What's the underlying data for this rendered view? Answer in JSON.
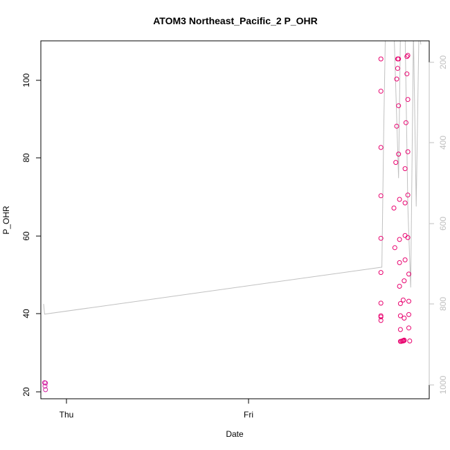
{
  "chart_data": {
    "type": "scatter",
    "title": "ATOM3 Northeast_Pacific_2 P_OHR",
    "xlabel": "Date",
    "ylabel": "P_OHR",
    "x_ticks": [
      "Thu",
      "Fri"
    ],
    "y_ticks": [
      "20",
      "40",
      "60",
      "80",
      "100"
    ],
    "y2_ticks": [
      "200",
      "400",
      "600",
      "800",
      "1000"
    ],
    "ylim": [
      19,
      110
    ],
    "y2lim": [
      1035,
      151
    ],
    "x_units": "hours since the Thu tick",
    "xlim": [
      -1.6,
      40.2
    ],
    "colors": {
      "points": "#e8006e",
      "early_points": "#d020a0",
      "line": "#c0c0c0",
      "right_axis": "#bfbfbf"
    },
    "pressure_line": {
      "name": "pressure",
      "points": [
        [
          -1.3,
          801
        ],
        [
          -1.2,
          826
        ],
        [
          35.1,
          710
        ],
        [
          35.3,
          380
        ],
        [
          35.5,
          110
        ],
        [
          36.4,
          120
        ],
        [
          36.9,
          490
        ],
        [
          37.1,
          130
        ],
        [
          37.3,
          140
        ],
        [
          37.6,
          125
        ],
        [
          37.9,
          560
        ],
        [
          38.2,
          760
        ],
        [
          38.5,
          130
        ],
        [
          38.8,
          560
        ],
        [
          39.1,
          120
        ],
        [
          39.3,
          160
        ]
      ]
    },
    "series": [
      {
        "name": "early",
        "points": [
          [
            -1.2,
            23.1
          ],
          [
            -1.1,
            23.0
          ],
          [
            -1.15,
            22.2
          ],
          [
            -1.1,
            21.3
          ]
        ]
      },
      {
        "name": "profile",
        "points": [
          [
            35.0,
            105.4
          ],
          [
            35.0,
            97.2
          ],
          [
            35.0,
            82.9
          ],
          [
            35.0,
            70.6
          ],
          [
            35.0,
            59.8
          ],
          [
            35.0,
            51.1
          ],
          [
            35.0,
            43.3
          ],
          [
            35.0,
            40.1
          ],
          [
            35.0,
            39.8
          ],
          [
            35.0,
            38.9
          ],
          [
            36.4,
            67.5
          ],
          [
            36.5,
            57.4
          ],
          [
            36.6,
            79.1
          ],
          [
            36.7,
            88.3
          ],
          [
            36.7,
            100.3
          ],
          [
            36.8,
            105.4
          ],
          [
            36.8,
            103.0
          ],
          [
            36.9,
            105.4
          ],
          [
            36.9,
            93.5
          ],
          [
            36.9,
            81.2
          ],
          [
            37.0,
            69.7
          ],
          [
            37.0,
            59.5
          ],
          [
            37.0,
            53.6
          ],
          [
            37.0,
            47.6
          ],
          [
            37.1,
            43.2
          ],
          [
            37.1,
            40.1
          ],
          [
            37.1,
            36.6
          ],
          [
            37.1,
            33.6
          ],
          [
            37.2,
            33.6
          ],
          [
            37.3,
            33.7
          ],
          [
            37.4,
            33.8
          ],
          [
            37.4,
            33.7
          ],
          [
            37.5,
            33.9
          ],
          [
            37.5,
            33.8
          ],
          [
            37.4,
            44.1
          ],
          [
            37.5,
            39.5
          ],
          [
            37.5,
            49.0
          ],
          [
            37.6,
            54.3
          ],
          [
            37.6,
            60.5
          ],
          [
            37.6,
            68.8
          ],
          [
            37.6,
            77.5
          ],
          [
            37.7,
            89.2
          ],
          [
            37.8,
            101.6
          ],
          [
            37.8,
            106.0
          ],
          [
            37.9,
            106.3
          ],
          [
            37.9,
            95.1
          ],
          [
            37.9,
            81.8
          ],
          [
            37.9,
            70.8
          ],
          [
            37.9,
            60.0
          ],
          [
            38.0,
            50.7
          ],
          [
            38.0,
            43.8
          ],
          [
            38.0,
            40.4
          ],
          [
            38.0,
            37.0
          ],
          [
            38.1,
            33.7
          ]
        ]
      }
    ]
  }
}
